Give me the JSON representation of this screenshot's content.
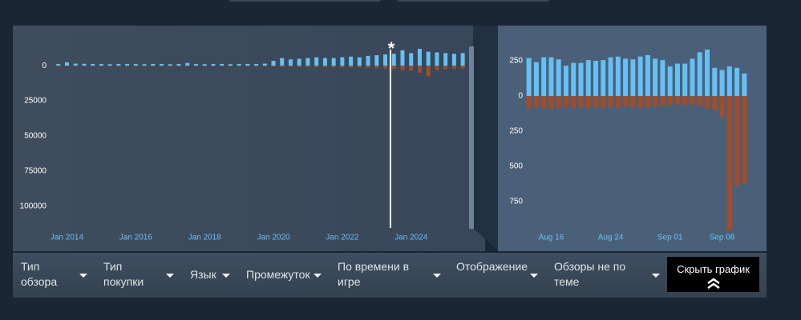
{
  "chart_data": [
    {
      "type": "bar",
      "x": [
        2013.75,
        2014,
        2014.25,
        2014.5,
        2014.75,
        2015,
        2015.25,
        2015.5,
        2015.75,
        2016,
        2016.25,
        2016.5,
        2016.75,
        2017,
        2017.25,
        2017.5,
        2017.75,
        2018,
        2018.25,
        2018.5,
        2018.75,
        2019,
        2019.25,
        2019.5,
        2019.75,
        2020,
        2020.25,
        2020.5,
        2020.75,
        2021,
        2021.25,
        2021.5,
        2021.75,
        2022,
        2022.25,
        2022.5,
        2022.75,
        2023,
        2023.25,
        2023.5,
        2023.75,
        2024,
        2024.25,
        2024.5,
        2024.75,
        2025,
        2025.25,
        2025.5
      ],
      "series": [
        {
          "color": "#66c0f4",
          "values": [
            1200,
            2500,
            1500,
            1400,
            1300,
            1200,
            1100,
            1200,
            1300,
            1200,
            1100,
            1300,
            1200,
            1100,
            1200,
            2000,
            1200,
            1100,
            1200,
            1300,
            1100,
            1200,
            1300,
            1200,
            1500,
            3500,
            5500,
            4500,
            5000,
            5500,
            6000,
            5500,
            5500,
            6000,
            6500,
            6000,
            7000,
            7500,
            8000,
            8500,
            11000,
            9000,
            12000,
            10000,
            9500,
            9000,
            8500,
            9000
          ]
        },
        {
          "color": "#a34c25",
          "values": [
            -300,
            -300,
            -250,
            -250,
            -250,
            -200,
            -250,
            -250,
            -250,
            -250,
            -250,
            -300,
            -250,
            -250,
            -250,
            -300,
            -250,
            -250,
            -250,
            -300,
            -250,
            -250,
            -300,
            -300,
            -400,
            -600,
            -800,
            -700,
            -800,
            -900,
            -1000,
            -1000,
            -1100,
            -1200,
            -1300,
            -1300,
            -1500,
            -1800,
            -2000,
            -2200,
            -3000,
            -3500,
            -5000,
            -7500,
            -3000,
            -2500,
            -2200,
            -2000
          ]
        }
      ],
      "xlim": [
        2013.5,
        2025.8
      ],
      "xticks": [
        {
          "value": 2014,
          "label": "Jan 2014"
        },
        {
          "value": 2016,
          "label": "Jan 2016"
        },
        {
          "value": 2018,
          "label": "Jan 2018"
        },
        {
          "value": 2020,
          "label": "Jan 2020"
        },
        {
          "value": 2022,
          "label": "Jan 2022"
        },
        {
          "value": 2024,
          "label": "Jan 2024"
        }
      ],
      "ylim": [
        -116000,
        24000
      ],
      "yticks": [
        0,
        {
          "value": -25000,
          "label": "25000"
        },
        {
          "value": -50000,
          "label": "50000"
        },
        {
          "value": -75000,
          "label": "75000"
        },
        {
          "value": -100000,
          "label": "100000"
        }
      ],
      "annotation": {
        "x": 2023.4,
        "label": "*"
      }
    },
    {
      "type": "bar",
      "categories": [
        null,
        null,
        null,
        "Aug 16",
        null,
        null,
        null,
        null,
        null,
        null,
        null,
        "Aug 24",
        null,
        null,
        null,
        null,
        null,
        null,
        null,
        "Sep 01",
        null,
        null,
        null,
        null,
        null,
        null,
        "Sep 08",
        null,
        null,
        null
      ],
      "series": [
        {
          "color": "#66c0f4",
          "values": [
            270,
            240,
            275,
            275,
            260,
            215,
            235,
            235,
            255,
            250,
            255,
            275,
            280,
            265,
            260,
            280,
            290,
            265,
            255,
            210,
            230,
            230,
            265,
            310,
            330,
            200,
            185,
            210,
            200,
            160
          ]
        },
        {
          "color": "#a34c25",
          "values": [
            -90,
            -80,
            -85,
            -90,
            -85,
            -80,
            -85,
            -80,
            -85,
            -80,
            -85,
            -80,
            -85,
            -75,
            -80,
            -85,
            -80,
            -75,
            -70,
            -65,
            -60,
            -65,
            -60,
            -70,
            -90,
            -100,
            -150,
            -955,
            -640,
            -625
          ]
        }
      ],
      "ylim": [
        -1000,
        500
      ],
      "yticks": [
        250,
        0,
        {
          "value": -250,
          "label": "250"
        },
        {
          "value": -500,
          "label": "500"
        },
        {
          "value": -750,
          "label": "750"
        }
      ]
    }
  ],
  "filters": [
    "Тип обзора",
    "Тип покупки",
    "Язык",
    "Промежуток",
    "По времени в игре",
    "Отображение",
    "Обзоры не по теме"
  ],
  "button": "Скрыть график"
}
